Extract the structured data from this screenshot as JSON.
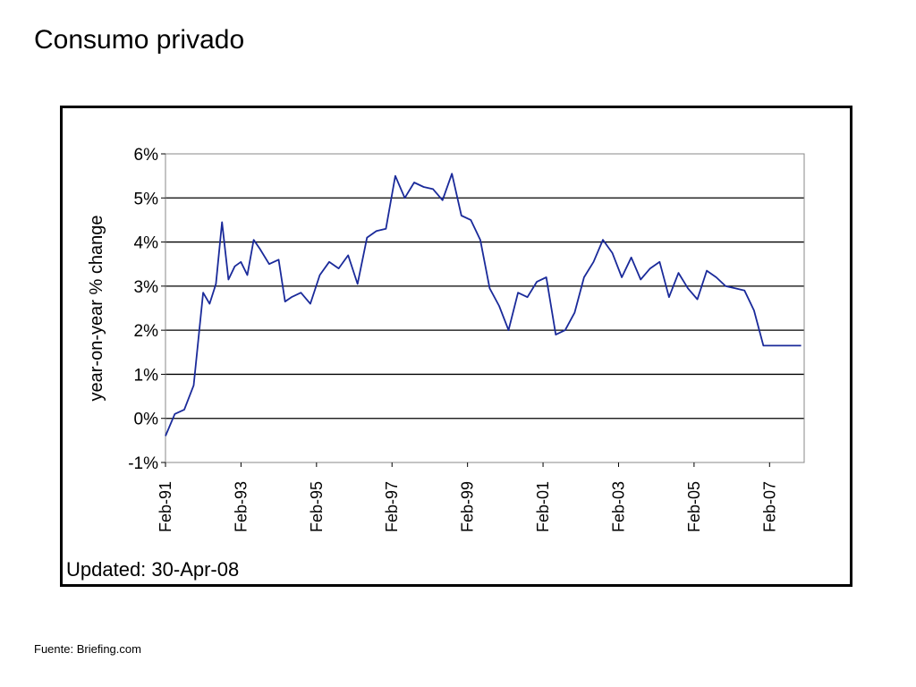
{
  "slide": {
    "title": "Consumo privado",
    "source": "Fuente: Briefing.com"
  },
  "chart_data": {
    "type": "line",
    "title": "",
    "ylabel": "year-on-year % change",
    "xlabel": "",
    "note": "Updated: 30-Apr-08",
    "ylim": [
      -1,
      6
    ],
    "yticks": [
      "-1%",
      "0%",
      "1%",
      "2%",
      "3%",
      "4%",
      "5%",
      "6%"
    ],
    "ytick_values": [
      -1,
      0,
      1,
      2,
      3,
      4,
      5,
      6
    ],
    "xlim": [
      1991.083,
      2008.0
    ],
    "xticks": [
      "Feb-91",
      "Feb-93",
      "Feb-95",
      "Feb-97",
      "Feb-99",
      "Feb-01",
      "Feb-03",
      "Feb-05",
      "Feb-07"
    ],
    "xtick_values": [
      1991.083,
      1993.083,
      1995.083,
      1997.083,
      1999.083,
      2001.083,
      2003.083,
      2005.083,
      2007.083
    ],
    "grid": "horizontal",
    "legend": "none",
    "line_color": "#1a2a9a",
    "series": [
      {
        "x": [
          1991.083,
          1991.33,
          1991.58,
          1991.83,
          1992.08,
          1992.25,
          1992.42,
          1992.58,
          1992.75,
          1992.92,
          1993.08,
          1993.25,
          1993.42,
          1993.58,
          1993.83,
          1994.08,
          1994.25,
          1994.42,
          1994.67,
          1994.92,
          1995.17,
          1995.42,
          1995.67,
          1995.92,
          1996.17,
          1996.42,
          1996.67,
          1996.92,
          1997.17,
          1997.42,
          1997.67,
          1997.92,
          1998.17,
          1998.42,
          1998.67,
          1998.92,
          1999.17,
          1999.42,
          1999.67,
          1999.92,
          2000.17,
          2000.42,
          2000.67,
          2000.92,
          2001.17,
          2001.42,
          2001.67,
          2001.92,
          2002.17,
          2002.42,
          2002.67,
          2002.92,
          2003.17,
          2003.42,
          2003.67,
          2003.92,
          2004.17,
          2004.42,
          2004.67,
          2004.92,
          2005.17,
          2005.42,
          2005.67,
          2005.92,
          2006.17,
          2006.42,
          2006.67,
          2006.92,
          2007.17,
          2007.42,
          2007.67,
          2007.92
        ],
        "values": [
          -0.4,
          0.1,
          0.2,
          0.75,
          2.85,
          2.6,
          3.05,
          4.45,
          3.15,
          3.45,
          3.55,
          3.25,
          4.05,
          3.85,
          3.5,
          3.6,
          2.65,
          2.75,
          2.85,
          2.6,
          3.25,
          3.55,
          3.4,
          3.7,
          3.05,
          4.1,
          4.25,
          4.3,
          5.5,
          5.0,
          5.35,
          5.25,
          5.2,
          4.95,
          5.55,
          4.6,
          4.5,
          4.05,
          2.95,
          2.55,
          2.0,
          2.85,
          2.75,
          3.1,
          3.2,
          1.9,
          2.0,
          2.4,
          3.2,
          3.55,
          4.05,
          3.75,
          3.2,
          3.65,
          3.15,
          3.4,
          3.55,
          2.75,
          3.3,
          2.95,
          2.7,
          3.35,
          3.2,
          3.0,
          2.95,
          2.9,
          2.45,
          1.65,
          1.65,
          1.65,
          1.65,
          1.65
        ]
      }
    ]
  }
}
